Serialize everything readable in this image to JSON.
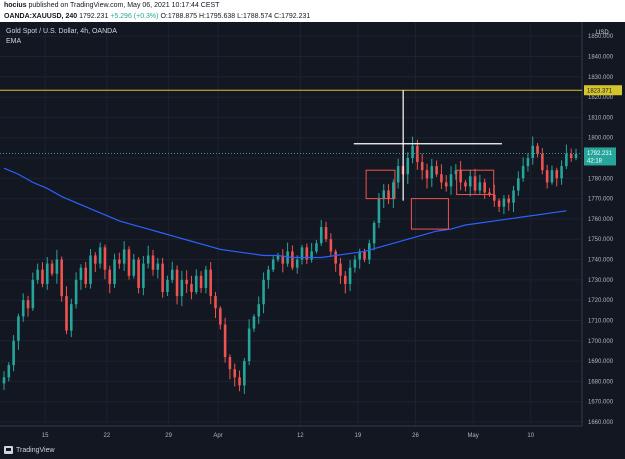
{
  "header": {
    "author": "hocius",
    "published": "published on TradingView.com, May 06, 2021 10:17:44 CEST",
    "symbol": "OANDA:XAUUSD, 240",
    "last": "1792.231",
    "change": "+5.296 (+0.3%)",
    "ohlc": "O:1788.875 H:1795.638 L:1788.574 C:1792.231"
  },
  "legend": {
    "title": "Gold Spot / U.S. Dollar, 4h, OANDA",
    "indicator": "EMA"
  },
  "footer": {
    "brand": "TradingView"
  },
  "colors": {
    "background": "#131722",
    "up": "#26a69a",
    "down": "#ef5350",
    "ema": "#2962ff",
    "hline": "#d4c52c",
    "box": "#ef5350",
    "grid": "#1e2230"
  },
  "chart_data": {
    "type": "candlestick",
    "currency": "USD",
    "ylim": [
      1660,
      1855
    ],
    "y_ticks": [
      "1850.000",
      "1840.000",
      "1830.000",
      "1820.000",
      "1810.000",
      "1800.000",
      "1790.000",
      "1780.000",
      "1770.000",
      "1760.000",
      "1750.000",
      "1740.000",
      "1730.000",
      "1720.000",
      "1710.000",
      "1700.000",
      "1690.000",
      "1680.000",
      "1670.000",
      "1660.000"
    ],
    "y_tick_values": [
      1850,
      1840,
      1830,
      1820,
      1810,
      1800,
      1790,
      1780,
      1770,
      1760,
      1750,
      1740,
      1730,
      1720,
      1710,
      1700,
      1690,
      1680,
      1670,
      1660
    ],
    "x_ticks": [
      "15",
      "22",
      "29",
      "Apr",
      "12",
      "19",
      "26",
      "May",
      "10"
    ],
    "x_tick_index": [
      10,
      25,
      40,
      52,
      72,
      86,
      100,
      114,
      128
    ],
    "bar_count": 140,
    "price_label": "1792.231",
    "countdown": "42:18",
    "horizontal_line": {
      "value": 1823.371,
      "label": "1823.371"
    },
    "current_price": 1792.231,
    "candles_close": [
      1682,
      1688,
      1700,
      1712,
      1720,
      1716,
      1730,
      1735,
      1728,
      1738,
      1733,
      1740,
      1722,
      1705,
      1718,
      1730,
      1736,
      1728,
      1742,
      1738,
      1746,
      1735,
      1728,
      1740,
      1738,
      1745,
      1732,
      1740,
      1726,
      1738,
      1742,
      1735,
      1738,
      1724,
      1730,
      1735,
      1722,
      1730,
      1728,
      1724,
      1732,
      1726,
      1735,
      1722,
      1716,
      1708,
      1692,
      1686,
      1682,
      1678,
      1690,
      1706,
      1712,
      1718,
      1730,
      1735,
      1740,
      1742,
      1738,
      1744,
      1736,
      1740,
      1746,
      1740,
      1744,
      1748,
      1756,
      1750,
      1744,
      1738,
      1732,
      1728,
      1736,
      1740,
      1744,
      1740,
      1748,
      1758,
      1770,
      1774,
      1770,
      1778,
      1786,
      1782,
      1790,
      1796,
      1788,
      1784,
      1780,
      1786,
      1782,
      1778,
      1776,
      1782,
      1784,
      1778,
      1776,
      1781,
      1774,
      1778,
      1773,
      1772,
      1769,
      1766,
      1770,
      1768,
      1774,
      1780,
      1786,
      1790,
      1796,
      1792,
      1784,
      1778,
      1784,
      1780,
      1786,
      1792,
      1790,
      1792
    ],
    "ema": [
      1785,
      1782,
      1778,
      1775,
      1771,
      1768,
      1765,
      1762,
      1759,
      1757,
      1755,
      1753,
      1751,
      1749,
      1747,
      1745,
      1744,
      1743,
      1742,
      1742,
      1741,
      1741,
      1741,
      1742,
      1743,
      1744,
      1746,
      1748,
      1750,
      1752,
      1754,
      1755,
      1757,
      1758,
      1759,
      1760,
      1761,
      1762,
      1763,
      1764
    ],
    "ema_index": [
      0,
      3,
      6,
      9,
      12,
      15,
      18,
      21,
      24,
      27,
      30,
      33,
      36,
      39,
      42,
      45,
      48,
      51,
      54,
      57,
      60,
      63,
      66,
      69,
      72,
      75,
      78,
      81,
      84,
      87,
      90,
      93,
      96,
      99,
      102,
      105,
      108,
      111,
      114,
      117
    ],
    "annotations": {
      "resistance_line": 1797,
      "vertical_marker_top": 1823.371,
      "vertical_marker_bottom": 1769,
      "boxes": [
        {
          "x0": 88,
          "x1": 95,
          "y0": 1770,
          "y1": 1784
        },
        {
          "x0": 99,
          "x1": 108,
          "y0": 1755,
          "y1": 1770
        },
        {
          "x0": 110,
          "x1": 119,
          "y0": 1772,
          "y1": 1784
        }
      ]
    }
  }
}
